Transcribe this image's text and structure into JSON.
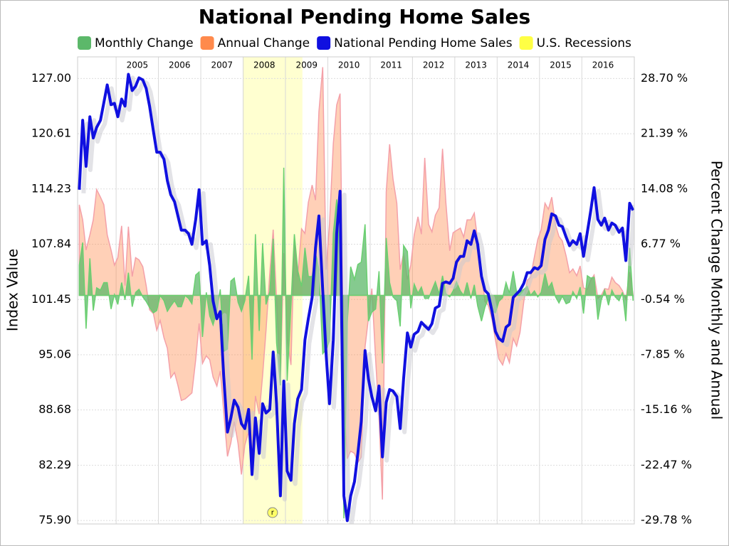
{
  "chart_data": {
    "type": "line",
    "title": "National Pending Home Sales",
    "ylabel": "Index Value",
    "y2label": "Percent Change Monthly and Annual",
    "xlim": [
      2004.09,
      2017.24
    ],
    "xticks": [
      2005,
      2006,
      2007,
      2008,
      2009,
      2010,
      2011,
      2012,
      2013,
      2014,
      2015,
      2016
    ],
    "ylim": [
      75.5,
      129.5
    ],
    "yticks": [
      {
        "value": 127,
        "label": "127.00"
      },
      120.61,
      114.23,
      107.84,
      101.45,
      95.06,
      88.68,
      82.29,
      {
        "value": 75.9,
        "label": "75.90"
      }
    ],
    "y2lim": [
      -30.24,
      31.56
    ],
    "y2ticks": [
      {
        "value": 28.7,
        "label": "28.70 %"
      },
      {
        "value": 21.39,
        "label": "21.39 %"
      },
      {
        "value": 14.08,
        "label": "14.08 %"
      },
      {
        "value": 6.77,
        "label": "6.77 %"
      },
      {
        "value": -0.54,
        "label": "-0.54 %"
      },
      {
        "value": -7.85,
        "label": "-7.85 %"
      },
      {
        "value": -15.16,
        "label": "-15.16 %"
      },
      {
        "value": -22.47,
        "label": "-22.47 %"
      },
      {
        "value": -29.78,
        "label": "-29.78 %"
      }
    ],
    "grid": true,
    "x": [
      2004.13,
      2004.21,
      2004.29,
      2004.38,
      2004.46,
      2004.54,
      2004.63,
      2004.71,
      2004.79,
      2004.88,
      2004.96,
      2005.04,
      2005.13,
      2005.21,
      2005.29,
      2005.38,
      2005.46,
      2005.54,
      2005.63,
      2005.71,
      2005.79,
      2005.88,
      2005.96,
      2006.04,
      2006.13,
      2006.21,
      2006.29,
      2006.38,
      2006.46,
      2006.54,
      2006.63,
      2006.71,
      2006.79,
      2006.88,
      2006.96,
      2007.04,
      2007.13,
      2007.21,
      2007.29,
      2007.38,
      2007.46,
      2007.54,
      2007.63,
      2007.71,
      2007.79,
      2007.88,
      2007.96,
      2008.04,
      2008.13,
      2008.21,
      2008.29,
      2008.38,
      2008.46,
      2008.54,
      2008.63,
      2008.71,
      2008.79,
      2008.88,
      2008.96,
      2009.04,
      2009.13,
      2009.21,
      2009.29,
      2009.38,
      2009.46,
      2009.54,
      2009.63,
      2009.71,
      2009.79,
      2009.88,
      2009.96,
      2010.04,
      2010.13,
      2010.21,
      2010.29,
      2010.38,
      2010.46,
      2010.54,
      2010.63,
      2010.71,
      2010.79,
      2010.88,
      2010.96,
      2011.04,
      2011.13,
      2011.21,
      2011.29,
      2011.38,
      2011.46,
      2011.54,
      2011.63,
      2011.71,
      2011.79,
      2011.88,
      2011.96,
      2012.04,
      2012.13,
      2012.21,
      2012.29,
      2012.38,
      2012.46,
      2012.54,
      2012.63,
      2012.71,
      2012.79,
      2012.88,
      2012.96,
      2013.04,
      2013.13,
      2013.21,
      2013.29,
      2013.38,
      2013.46,
      2013.54,
      2013.63,
      2013.71,
      2013.79,
      2013.88,
      2013.96,
      2014.04,
      2014.13,
      2014.21,
      2014.29,
      2014.38,
      2014.46,
      2014.54,
      2014.63,
      2014.71,
      2014.79,
      2014.88,
      2014.96,
      2015.04,
      2015.13,
      2015.21,
      2015.29,
      2015.38,
      2015.46,
      2015.54,
      2015.63,
      2015.71,
      2015.79,
      2015.88,
      2015.96,
      2016.04,
      2016.13,
      2016.21,
      2016.29,
      2016.38,
      2016.46,
      2016.54,
      2016.63,
      2016.71,
      2016.79,
      2016.88,
      2016.96,
      2017.04,
      2017.13,
      2017.21
    ],
    "series": [
      {
        "name": "Monthly Change",
        "color": "#5cb86a",
        "axis": "y2",
        "values": [
          4.0,
          7.0,
          -4.4,
          4.9,
          -2.0,
          1.0,
          0.7,
          1.7,
          1.7,
          -1.8,
          0.1,
          -1.2,
          1.7,
          -0.6,
          3.0,
          -1.5,
          0.4,
          0.8,
          -0.2,
          -0.8,
          -1.6,
          -2.3,
          -2.0,
          0.0,
          -0.7,
          -2.1,
          -1.4,
          -0.7,
          -1.5,
          -1.5,
          0.0,
          -0.4,
          -1.1,
          2.7,
          3.1,
          -5.5,
          0.4,
          -2.7,
          -3.9,
          -2.0,
          0.8,
          -7.4,
          -7.1,
          1.9,
          2.3,
          -0.9,
          -2.1,
          -0.7,
          2.6,
          -8.5,
          8.1,
          -4.7,
          6.9,
          -1.2,
          0.5,
          7.5,
          -6.3,
          -11.9,
          16.9,
          -11.3,
          -1.3,
          8.1,
          3.3,
          1.2,
          6.3,
          2.5,
          2.5,
          5.6,
          3.4,
          -7.7,
          -7.2,
          -6.0,
          8.2,
          12.7,
          4.5,
          -29.5,
          -3.6,
          3.8,
          2.1,
          4.1,
          4.4,
          9.4,
          -3.4,
          -2.2,
          -1.8,
          3.2,
          -9.0,
          7.6,
          1.7,
          -0.2,
          -0.7,
          -4.1,
          6.6,
          5.8,
          -1.7,
          1.5,
          0.3,
          1.1,
          -0.4,
          -0.4,
          0.7,
          1.8,
          0.2,
          2.6,
          0.2,
          -0.2,
          0.6,
          1.8,
          0.6,
          0.0,
          1.7,
          -0.4,
          1.4,
          -1.4,
          -3.4,
          -1.6,
          -0.4,
          -2.0,
          -2.3,
          -0.8,
          -0.3,
          1.7,
          0.3,
          3.2,
          0.4,
          0.4,
          0.8,
          1.2,
          0.0,
          0.6,
          -0.2,
          0.4,
          2.9,
          1.0,
          1.7,
          -0.2,
          -1.0,
          -0.1,
          -1.1,
          -0.9,
          0.5,
          -0.4,
          1.1,
          -2.4,
          2.6,
          2.3,
          2.4,
          -3.2,
          -0.6,
          0.7,
          -1.3,
          0.7,
          -0.2,
          -0.7,
          0.4,
          -3.4,
          6.3,
          -0.7
        ]
      },
      {
        "name": "Annual Change",
        "color": "#ff8a4c",
        "axis": "y2",
        "values": [
          12,
          10,
          6,
          8,
          10,
          14,
          13,
          12,
          8,
          6,
          4,
          5,
          9.2,
          1.3,
          9.1,
          2.5,
          5.0,
          4.7,
          3.8,
          1.3,
          -1.9,
          -2.4,
          -4.6,
          -3.3,
          -5.6,
          -7.0,
          -10.9,
          -10.2,
          -11.9,
          -13.9,
          -13.7,
          -13.3,
          -12.9,
          -8.5,
          -3.7,
          -9.0,
          -8.0,
          -8.5,
          -10.8,
          -12.0,
          -10.0,
          -15.3,
          -21.3,
          -19.5,
          -16.7,
          -19.6,
          -23.7,
          -19.8,
          -18.0,
          -22.9,
          -13.3,
          -15.7,
          -10.6,
          -4.7,
          3.0,
          8.7,
          -0.5,
          -11.5,
          5.6,
          -5.7,
          -9.2,
          7.3,
          2.5,
          8.8,
          8.2,
          12.3,
          14.6,
          12.6,
          24.3,
          30.2,
          3.4,
          9.5,
          20.1,
          25.2,
          26.7,
          -13.5,
          -21.6,
          -20.6,
          -20.9,
          -22.1,
          -21.4,
          -6.8,
          -3.0,
          0.9,
          -8.5,
          -16.1,
          -27.0,
          13.7,
          20.0,
          15.4,
          12.2,
          3.4,
          5.6,
          2.1,
          4.0,
          8.0,
          10.4,
          8.1,
          18.2,
          9.4,
          8.4,
          10.6,
          11.6,
          19.4,
          12.2,
          5.9,
          8.3,
          8.6,
          8.9,
          7.7,
          10.0,
          10.0,
          10.9,
          7.3,
          3.4,
          -0.8,
          -1.3,
          -3.2,
          -5.9,
          -8.4,
          -9.2,
          -7.7,
          -8.9,
          -5.7,
          -6.7,
          -4.9,
          -0.8,
          2.0,
          2.4,
          5.1,
          7.4,
          8.7,
          12.2,
          11.4,
          13.0,
          9.3,
          7.8,
          7.2,
          5.2,
          3.0,
          3.5,
          2.6,
          3.9,
          1.0,
          0.8,
          2.0,
          2.7,
          -0.4,
          0.0,
          0.9,
          0.8,
          2.4,
          1.7,
          1.3,
          0.6,
          -0.5,
          3.1,
          0.1
        ]
      },
      {
        "name": "National Pending Home Sales",
        "color": "#1010e0",
        "values": [
          114.14,
          122.17,
          116.84,
          122.58,
          120.12,
          121.35,
          122.17,
          124.21,
          126.26,
          123.97,
          124.13,
          122.58,
          124.62,
          123.81,
          127.49,
          125.61,
          126.1,
          127.08,
          126.84,
          125.85,
          123.81,
          120.94,
          118.48,
          118.48,
          117.66,
          115.2,
          113.57,
          112.75,
          111.11,
          109.47,
          109.47,
          109.06,
          107.83,
          110.7,
          114.14,
          107.83,
          108.24,
          105.37,
          101.28,
          99.23,
          100.05,
          92.68,
          86.12,
          87.76,
          89.81,
          88.99,
          87.1,
          86.53,
          88.74,
          81.21,
          87.76,
          83.66,
          89.4,
          88.33,
          88.74,
          95.38,
          89.4,
          78.75,
          92.02,
          81.62,
          80.55,
          87.1,
          89.97,
          91.04,
          96.77,
          99.23,
          101.69,
          107.42,
          111.11,
          102.51,
          95.13,
          89.4,
          96.77,
          109.06,
          113.97,
          78.75,
          75.88,
          78.75,
          80.39,
          83.66,
          87.35,
          95.54,
          92.27,
          90.22,
          88.58,
          91.45,
          83.25,
          89.56,
          91.04,
          90.87,
          90.22,
          86.53,
          92.27,
          97.59,
          95.95,
          97.43,
          97.75,
          98.82,
          98.41,
          98.0,
          98.66,
          100.46,
          100.7,
          103.32,
          103.49,
          103.32,
          103.9,
          105.78,
          106.44,
          106.44,
          108.24,
          107.83,
          109.39,
          107.83,
          104.14,
          102.51,
          102.1,
          100.05,
          97.75,
          96.94,
          96.61,
          98.25,
          98.57,
          101.69,
          102.1,
          102.51,
          103.32,
          104.55,
          104.55,
          105.13,
          104.96,
          105.37,
          108.4,
          109.47,
          111.35,
          111.11,
          110.04,
          109.88,
          108.65,
          107.67,
          108.24,
          107.83,
          109.06,
          106.44,
          109.22,
          111.68,
          114.38,
          110.7,
          110.04,
          110.86,
          109.47,
          110.29,
          110.04,
          109.22,
          109.71,
          105.95,
          112.58,
          111.76
        ]
      }
    ],
    "recession": {
      "name": "U.S. Recessions",
      "color": "#ffff44",
      "start": 2007.99,
      "end": 2009.4,
      "marker": "r"
    }
  }
}
